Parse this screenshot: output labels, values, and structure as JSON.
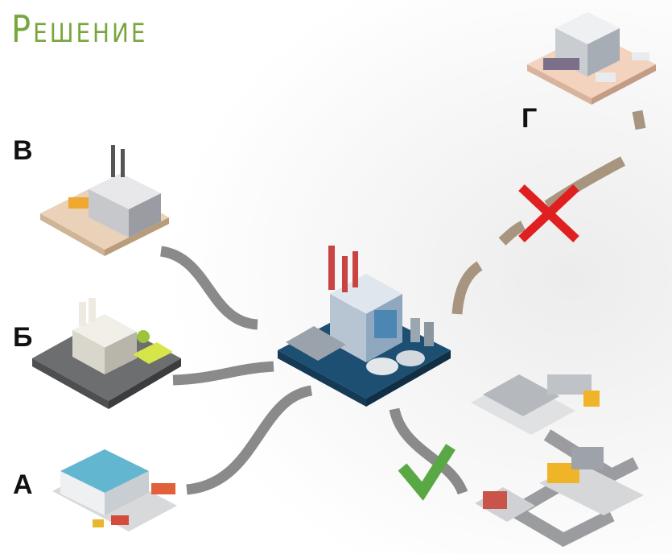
{
  "title": "Решение",
  "nodes": [
    {
      "label": "В"
    },
    {
      "label": "Б"
    },
    {
      "label": "А"
    },
    {
      "label": "Г"
    }
  ]
}
